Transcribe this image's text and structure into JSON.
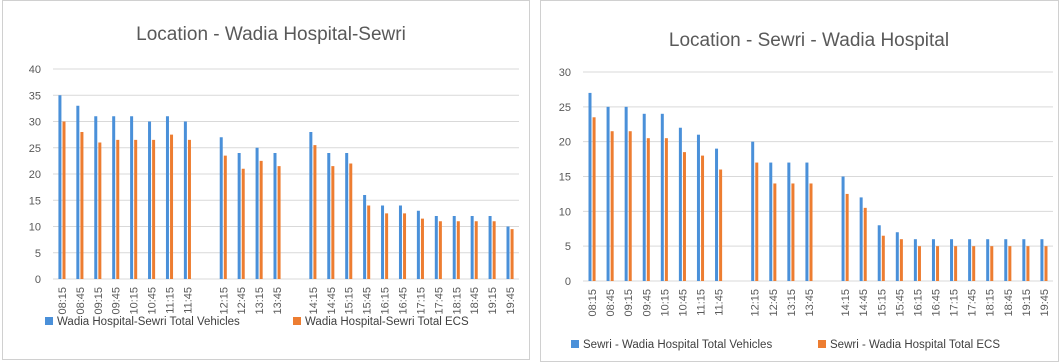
{
  "chart_data": [
    {
      "type": "bar",
      "title": "Location - Wadia Hospital-Sewri",
      "xlabel": "",
      "ylabel": "",
      "ylim": [
        0,
        40
      ],
      "yticks": [
        0,
        5,
        10,
        15,
        20,
        25,
        30,
        35,
        40
      ],
      "grid": true,
      "legend": "bottom",
      "categories": [
        "08:15",
        "08:45",
        "09:15",
        "09:45",
        "10:15",
        "10:45",
        "11:15",
        "11:45",
        "",
        "12:15",
        "12:45",
        "13:15",
        "13:45",
        "",
        "14:15",
        "14:45",
        "15:15",
        "15:45",
        "16:15",
        "16:45",
        "17:15",
        "17:45",
        "18:15",
        "18:45",
        "19:15",
        "19:45"
      ],
      "series": [
        {
          "name": "Wadia Hospital-Sewri Total Vehicles",
          "color": "#4a90d9",
          "values": [
            35,
            33,
            31,
            31,
            31,
            30,
            31,
            30,
            null,
            27,
            24,
            25,
            24,
            null,
            28,
            24,
            24,
            16,
            14,
            14,
            13,
            12,
            12,
            12,
            12,
            10
          ]
        },
        {
          "name": "Wadia Hospital-Sewri Total ECS",
          "color": "#ed7d31",
          "values": [
            30,
            28,
            26,
            26.5,
            26.5,
            26.5,
            27.5,
            26.5,
            null,
            23.5,
            21,
            22.5,
            21.5,
            null,
            25.5,
            21.5,
            22,
            14,
            12.5,
            12.5,
            11.5,
            11,
            11,
            11,
            11,
            9.5
          ]
        }
      ]
    },
    {
      "type": "bar",
      "title": "Location - Sewri - Wadia Hospital",
      "xlabel": "",
      "ylabel": "",
      "ylim": [
        0,
        30
      ],
      "yticks": [
        0,
        5,
        10,
        15,
        20,
        25,
        30
      ],
      "grid": true,
      "legend": "bottom",
      "categories": [
        "08:15",
        "08:45",
        "09:15",
        "09:45",
        "10:15",
        "10:45",
        "11:15",
        "11:45",
        "",
        "12:15",
        "12:45",
        "13:15",
        "13:45",
        "",
        "14:15",
        "14:45",
        "15:15",
        "15:45",
        "16:15",
        "16:45",
        "17:15",
        "17:45",
        "18:15",
        "18:45",
        "19:15",
        "19:45"
      ],
      "series": [
        {
          "name": "Sewri - Wadia Hospital Total Vehicles",
          "color": "#4a90d9",
          "values": [
            27,
            25,
            25,
            24,
            24,
            22,
            21,
            19,
            null,
            20,
            17,
            17,
            17,
            null,
            15,
            12,
            8,
            7,
            6,
            6,
            6,
            6,
            6,
            6,
            6,
            6
          ]
        },
        {
          "name": "Sewri - Wadia Hospital Total ECS",
          "color": "#ed7d31",
          "values": [
            23.5,
            21.5,
            21.5,
            20.5,
            20.5,
            18.5,
            18,
            16,
            null,
            17,
            14,
            14,
            14,
            null,
            12.5,
            10.5,
            6.5,
            6,
            5,
            5,
            5,
            5,
            5,
            5,
            5,
            5
          ]
        }
      ]
    }
  ]
}
